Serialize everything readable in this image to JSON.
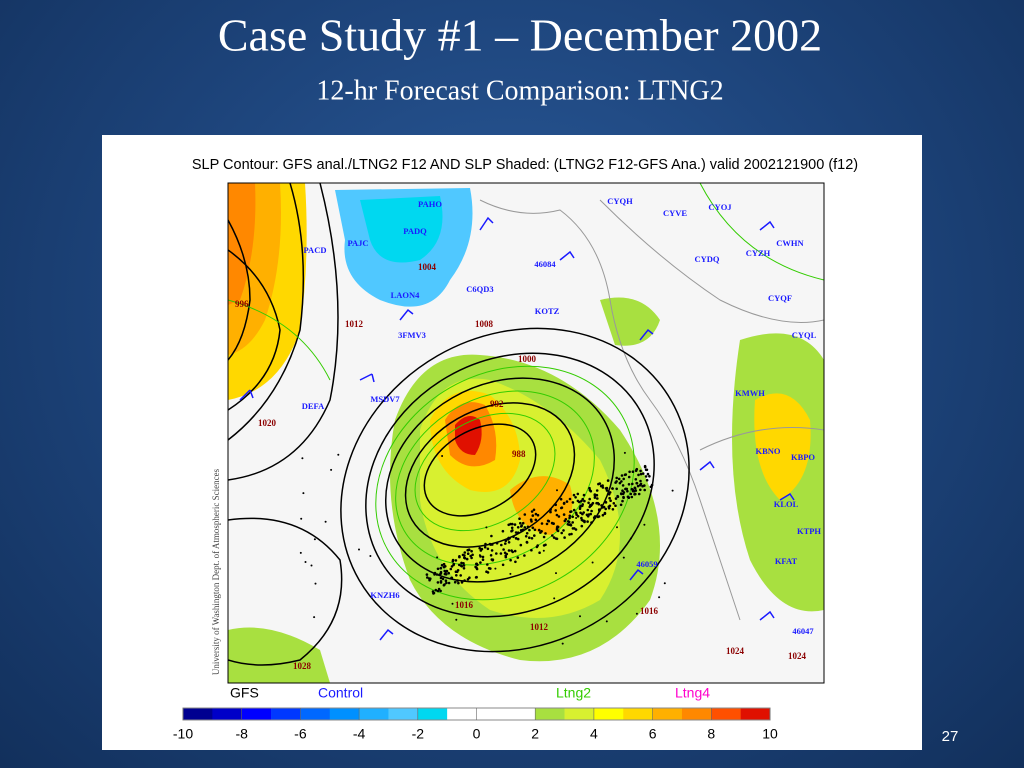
{
  "slide": {
    "title": "Case Study #1 – December 2002",
    "subtitle": "12-hr Forecast Comparison: LTNG2",
    "page_number": "27",
    "map": {
      "title": "SLP Contour: GFS anal./LTNG2 F12 AND SLP Shaded: (LTNG2 F12-GFS Ana.) valid 2002121900 (f12)",
      "credit": "University of Washington Dept. of Atmospheric Sciences",
      "contour_labels": [
        "1004",
        "1008",
        "1012",
        "1016",
        "1000",
        "996",
        "992",
        "988",
        "1024",
        "1028",
        "1020",
        "1012",
        "1016",
        "1024"
      ],
      "station_labels": [
        "PADQ",
        "PAHO",
        "PAJC",
        "PACD",
        "LAON4",
        "3FMV3",
        "KOTZ",
        "CYQH",
        "CYVE",
        "CYOJ",
        "CWHN",
        "CYZH",
        "CYDQ",
        "CYQF",
        "CYQL",
        "KMWH",
        "KBNO",
        "KBPO",
        "KLOL",
        "KFAT",
        "KTPH",
        "KNZH6",
        "46047",
        "46059",
        "46084",
        "C6QD3",
        "DEFA",
        "MSDV7"
      ]
    },
    "legend": [
      {
        "name": "GFS",
        "color": "#000000"
      },
      {
        "name": "Control",
        "color": "#1a1aff"
      },
      {
        "name": "Ltng2",
        "color": "#33cc00"
      },
      {
        "name": "Ltng4",
        "color": "#ff00cc"
      }
    ],
    "colorbar": {
      "ticks": [
        -10,
        -8,
        -6,
        -4,
        -2,
        0,
        2,
        4,
        6,
        8,
        10
      ],
      "colors": [
        "#000090",
        "#0000c8",
        "#0000ff",
        "#0038ff",
        "#0068ff",
        "#0090ff",
        "#20b0ff",
        "#50c8ff",
        "#00d8f0",
        "#ffffff",
        "#ffffff",
        "#ffffff",
        "#a8e040",
        "#d8f030",
        "#ffff00",
        "#ffd800",
        "#ffb000",
        "#ff8800",
        "#ff5000",
        "#e01000"
      ]
    }
  }
}
